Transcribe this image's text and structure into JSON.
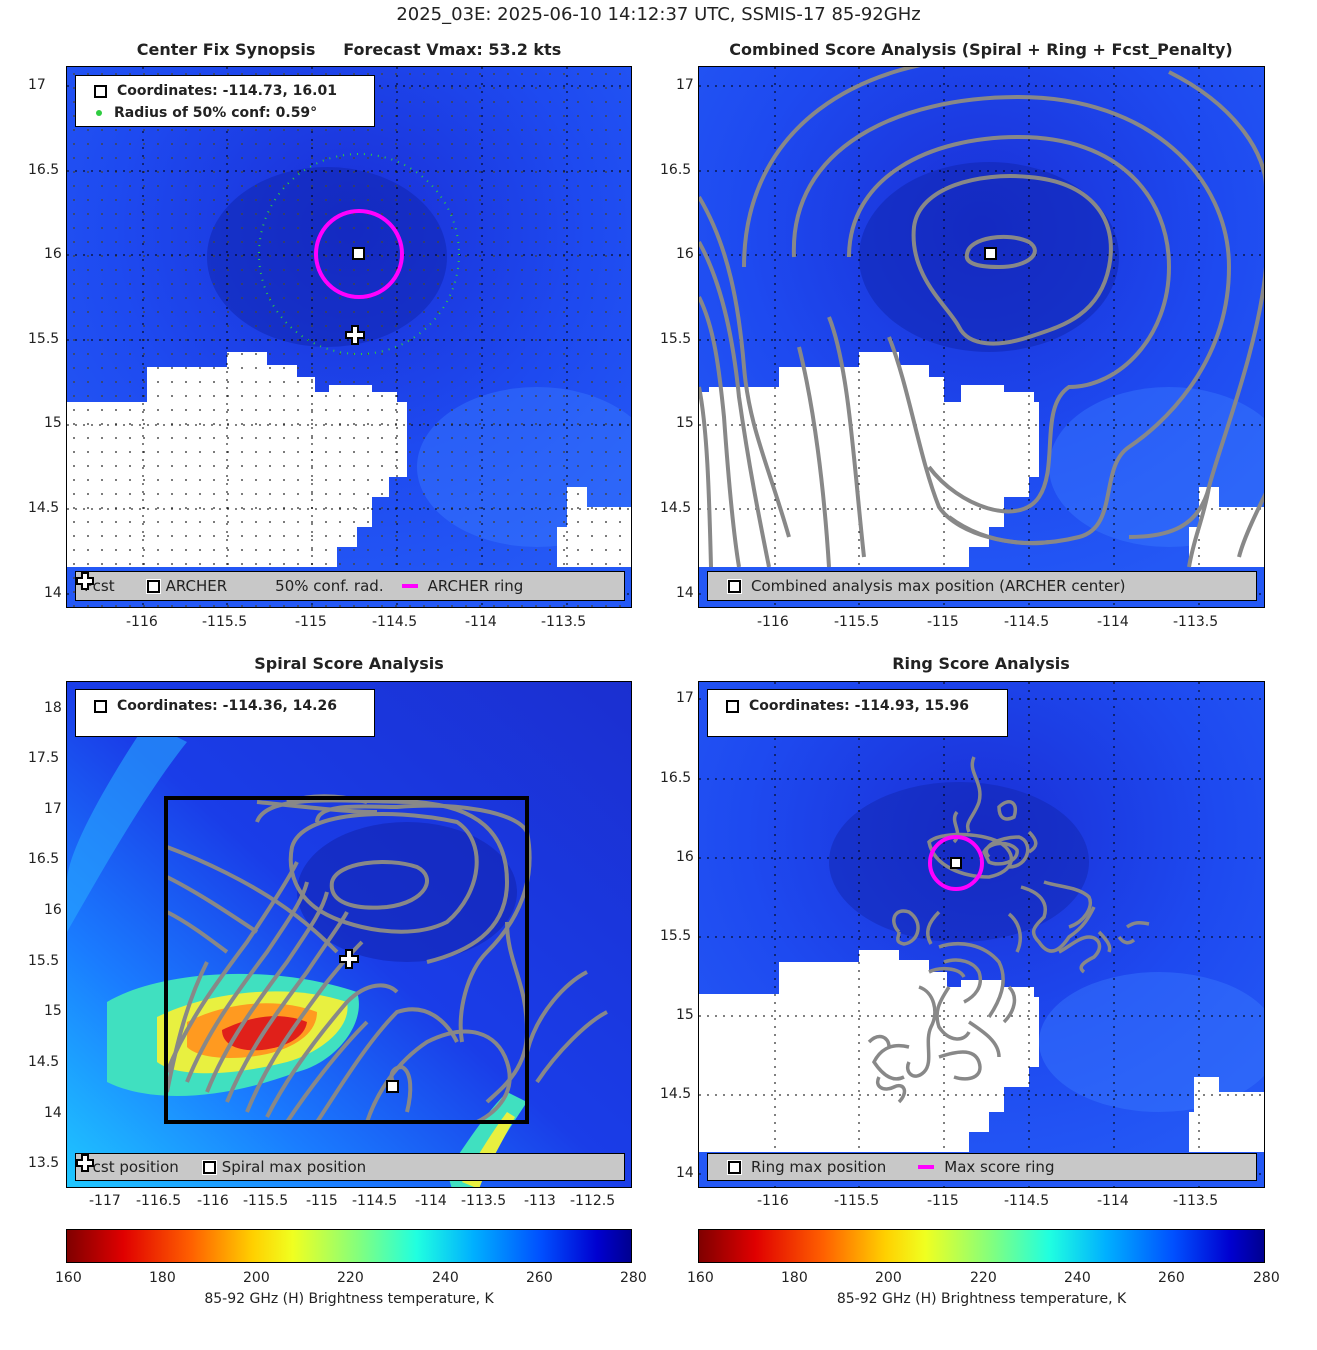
{
  "suptitle": "2025_03E: 2025-06-10 14:12:37 UTC, SSMIS-17 85-92GHz",
  "panels": {
    "tl": {
      "title": "Center Fix Synopsis     Forecast Vmax: 53.2 kts",
      "info_line1": "Coordinates: -114.73, 16.01",
      "info_line2": "Radius of 50% conf: 0.59°",
      "legend": [
        "Fcst",
        "ARCHER",
        "50% conf. rad.",
        "ARCHER ring"
      ],
      "xticks": [
        "-116",
        "-115.5",
        "-115",
        "-114.5",
        "-114",
        "-113.5"
      ],
      "yticks": [
        "17",
        "16.5",
        "16",
        "15.5",
        "15",
        "14.5",
        "14"
      ]
    },
    "tr": {
      "title": "Combined Score Analysis (Spiral + Ring + Fcst_Penalty)",
      "legend": [
        "Combined analysis max position (ARCHER center)"
      ],
      "xticks": [
        "-116",
        "-115.5",
        "-115",
        "-114.5",
        "-114",
        "-113.5"
      ],
      "yticks": [
        "17",
        "16.5",
        "16",
        "15.5",
        "15",
        "14.5",
        "14"
      ]
    },
    "bl": {
      "title": "Spiral Score Analysis",
      "info_line1": "Coordinates: -114.36, 14.26",
      "legend": [
        "Fcst position",
        "Spiral max position"
      ],
      "xticks": [
        "-117",
        "-116.5",
        "-116",
        "-115.5",
        "-115",
        "-114.5",
        "-114",
        "-113.5",
        "-113",
        "-112.5"
      ],
      "yticks": [
        "18",
        "17.5",
        "17",
        "16.5",
        "16",
        "15.5",
        "15",
        "14.5",
        "14",
        "13.5"
      ]
    },
    "br": {
      "title": "Ring Score Analysis",
      "info_line1": "Coordinates: -114.93, 15.96",
      "legend": [
        "Ring max position",
        "Max score ring"
      ],
      "xticks": [
        "-116",
        "-115.5",
        "-115",
        "-114.5",
        "-114",
        "-113.5"
      ],
      "yticks": [
        "17",
        "16.5",
        "16",
        "15.5",
        "15",
        "14.5",
        "14"
      ]
    }
  },
  "colorbar": {
    "label": "85-92 GHz (H) Brightness temperature, K",
    "ticks": [
      "160",
      "180",
      "200",
      "220",
      "240",
      "260",
      "280"
    ]
  },
  "chart_data": [
    {
      "type": "heatmap",
      "title": "Center Fix Synopsis     Forecast Vmax: 53.2 kts",
      "xlim": [
        -116.45,
        -113.15
      ],
      "ylim": [
        13.95,
        17.1
      ],
      "archer_center": [
        -114.73,
        16.01
      ],
      "fcst_position": [
        -114.79,
        15.51
      ],
      "conf50_radius_deg": 0.59,
      "archer_ring_radius_deg": 0.26,
      "colorscale": "jet",
      "clim": [
        160,
        280
      ]
    },
    {
      "type": "heatmap",
      "title": "Combined Score Analysis (Spiral + Ring + Fcst_Penalty)",
      "xlim": [
        -116.45,
        -113.15
      ],
      "ylim": [
        13.95,
        17.1
      ],
      "max_position": [
        -114.73,
        16.01
      ],
      "contours": "combined score"
    },
    {
      "type": "heatmap",
      "title": "Spiral Score Analysis",
      "xlim": [
        -117.3,
        -112.3
      ],
      "ylim": [
        13.3,
        18.3
      ],
      "spiral_max_position": [
        -114.36,
        14.26
      ],
      "fcst_position": [
        -114.79,
        15.51
      ],
      "search_box": {
        "x": [
          -116.45,
          -113.15
        ],
        "y": [
          13.92,
          17.1
        ]
      }
    },
    {
      "type": "heatmap",
      "title": "Ring Score Analysis",
      "xlim": [
        -116.45,
        -113.15
      ],
      "ylim": [
        13.95,
        17.1
      ],
      "ring_max_position": [
        -114.93,
        15.96
      ],
      "max_score_ring_radius_deg": 0.16
    }
  ]
}
